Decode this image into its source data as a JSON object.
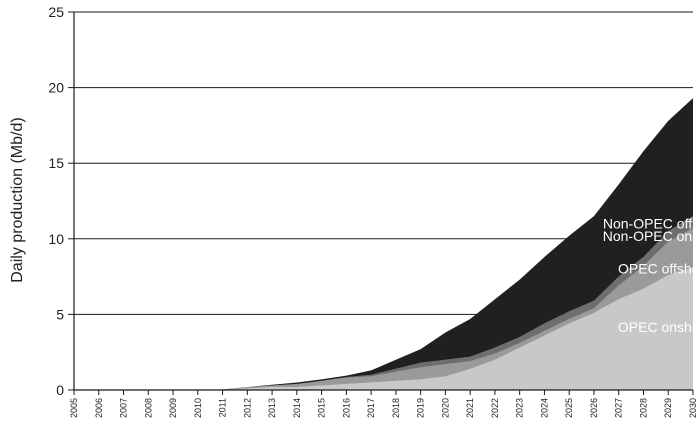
{
  "chart_data": {
    "type": "area",
    "stacked": true,
    "title": "",
    "xlabel": "",
    "ylabel": "Daily production (Mb/d)",
    "ylim": [
      0,
      25
    ],
    "yticks": [
      "0",
      "5",
      "10",
      "15",
      "20",
      "25"
    ],
    "grid": "horizontal",
    "x": [
      "2005",
      "2006",
      "2007",
      "2008",
      "2009",
      "2010",
      "2011",
      "2012",
      "2013",
      "2014",
      "2015",
      "2016",
      "2017",
      "2018",
      "2019",
      "2020",
      "2021",
      "2022",
      "2023",
      "2024",
      "2025",
      "2026",
      "2027",
      "2028",
      "2029",
      "2030"
    ],
    "series": [
      {
        "name": "OPEC onshore",
        "color": "#c8c8c8",
        "label_color": "#ffffff",
        "values": [
          0,
          0,
          0,
          0,
          0,
          0,
          0,
          0.1,
          0.2,
          0.2,
          0.3,
          0.4,
          0.5,
          0.6,
          0.7,
          0.9,
          1.4,
          2.0,
          2.8,
          3.6,
          4.4,
          5.1,
          6.0,
          6.7,
          7.6,
          8.1
        ]
      },
      {
        "name": "OPEC offshore",
        "color": "#9a9a9a",
        "label_color": "#ffffff",
        "values": [
          0,
          0,
          0,
          0,
          0,
          0,
          0.05,
          0.1,
          0.1,
          0.2,
          0.3,
          0.4,
          0.4,
          0.6,
          0.8,
          0.8,
          0.5,
          0.4,
          0.3,
          0.3,
          0.3,
          0.3,
          0.9,
          1.5,
          2.2,
          2.6
        ]
      },
      {
        "name": "Non-OPEC onshore",
        "color": "#6e6e6e",
        "label_color": "#ffffff",
        "values": [
          0,
          0,
          0,
          0,
          0,
          0,
          0,
          0,
          0,
          0,
          0,
          0.05,
          0.1,
          0.2,
          0.3,
          0.3,
          0.3,
          0.4,
          0.4,
          0.5,
          0.5,
          0.5,
          0.6,
          0.6,
          0.7,
          0.8
        ]
      },
      {
        "name": "Non-OPEC offshore",
        "color": "#202020",
        "label_color": "#ffffff",
        "values": [
          0,
          0,
          0,
          0,
          0,
          0,
          0,
          0,
          0.05,
          0.1,
          0.1,
          0.1,
          0.3,
          0.6,
          0.9,
          1.8,
          2.5,
          3.2,
          3.8,
          4.4,
          5.0,
          5.6,
          6.1,
          7.0,
          7.3,
          7.8
        ]
      }
    ]
  }
}
